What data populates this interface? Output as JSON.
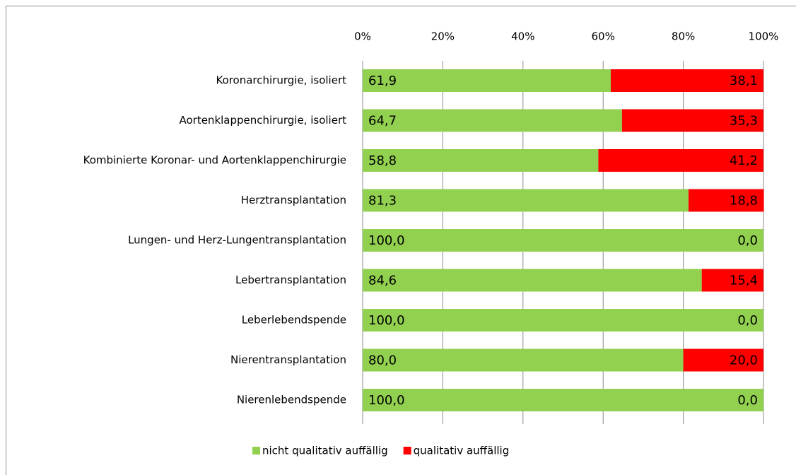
{
  "chart_data": {
    "type": "bar",
    "orientation": "horizontal",
    "stacked": true,
    "categories": [
      "Koronarchirurgie, isoliert",
      "Aortenklappenchirurgie, isoliert",
      "Kombinierte Koronar- und Aortenklappenchirurgie",
      "Herztransplantation",
      "Lungen- und Herz-Lungentransplantation",
      "Lebertransplantation",
      "Leberlebendspende",
      "Nierentransplantation",
      "Nierenlebendspende"
    ],
    "series": [
      {
        "name": "nicht qualitativ auffällig",
        "color": "#92d050",
        "values": [
          61.9,
          64.7,
          58.8,
          81.3,
          100,
          84.6,
          100,
          80,
          100
        ],
        "value_labels": [
          "61,9",
          "64,7",
          "58,8",
          "81,3",
          "100,0",
          "84,6",
          "100,0",
          "80,0",
          "100,0"
        ]
      },
      {
        "name": "qualitativ auffällig",
        "color": "#ff0000",
        "values": [
          38.1,
          35.3,
          41.2,
          18.8,
          0,
          15.4,
          0,
          20,
          0
        ],
        "value_labels": [
          "38,1",
          "35,3",
          "41,2",
          "18,8",
          "0,0",
          "15,4",
          "0,0",
          "20,0",
          "0,0"
        ]
      }
    ],
    "xlim": [
      0,
      100
    ],
    "xticks": [
      {
        "value": 0,
        "label": "0%"
      },
      {
        "value": 20,
        "label": "20%"
      },
      {
        "value": 40,
        "label": "40%"
      },
      {
        "value": 60,
        "label": "60%"
      },
      {
        "value": 80,
        "label": "80%"
      },
      {
        "value": 100,
        "label": "100%"
      }
    ],
    "grid": true,
    "legend": "bottom"
  }
}
